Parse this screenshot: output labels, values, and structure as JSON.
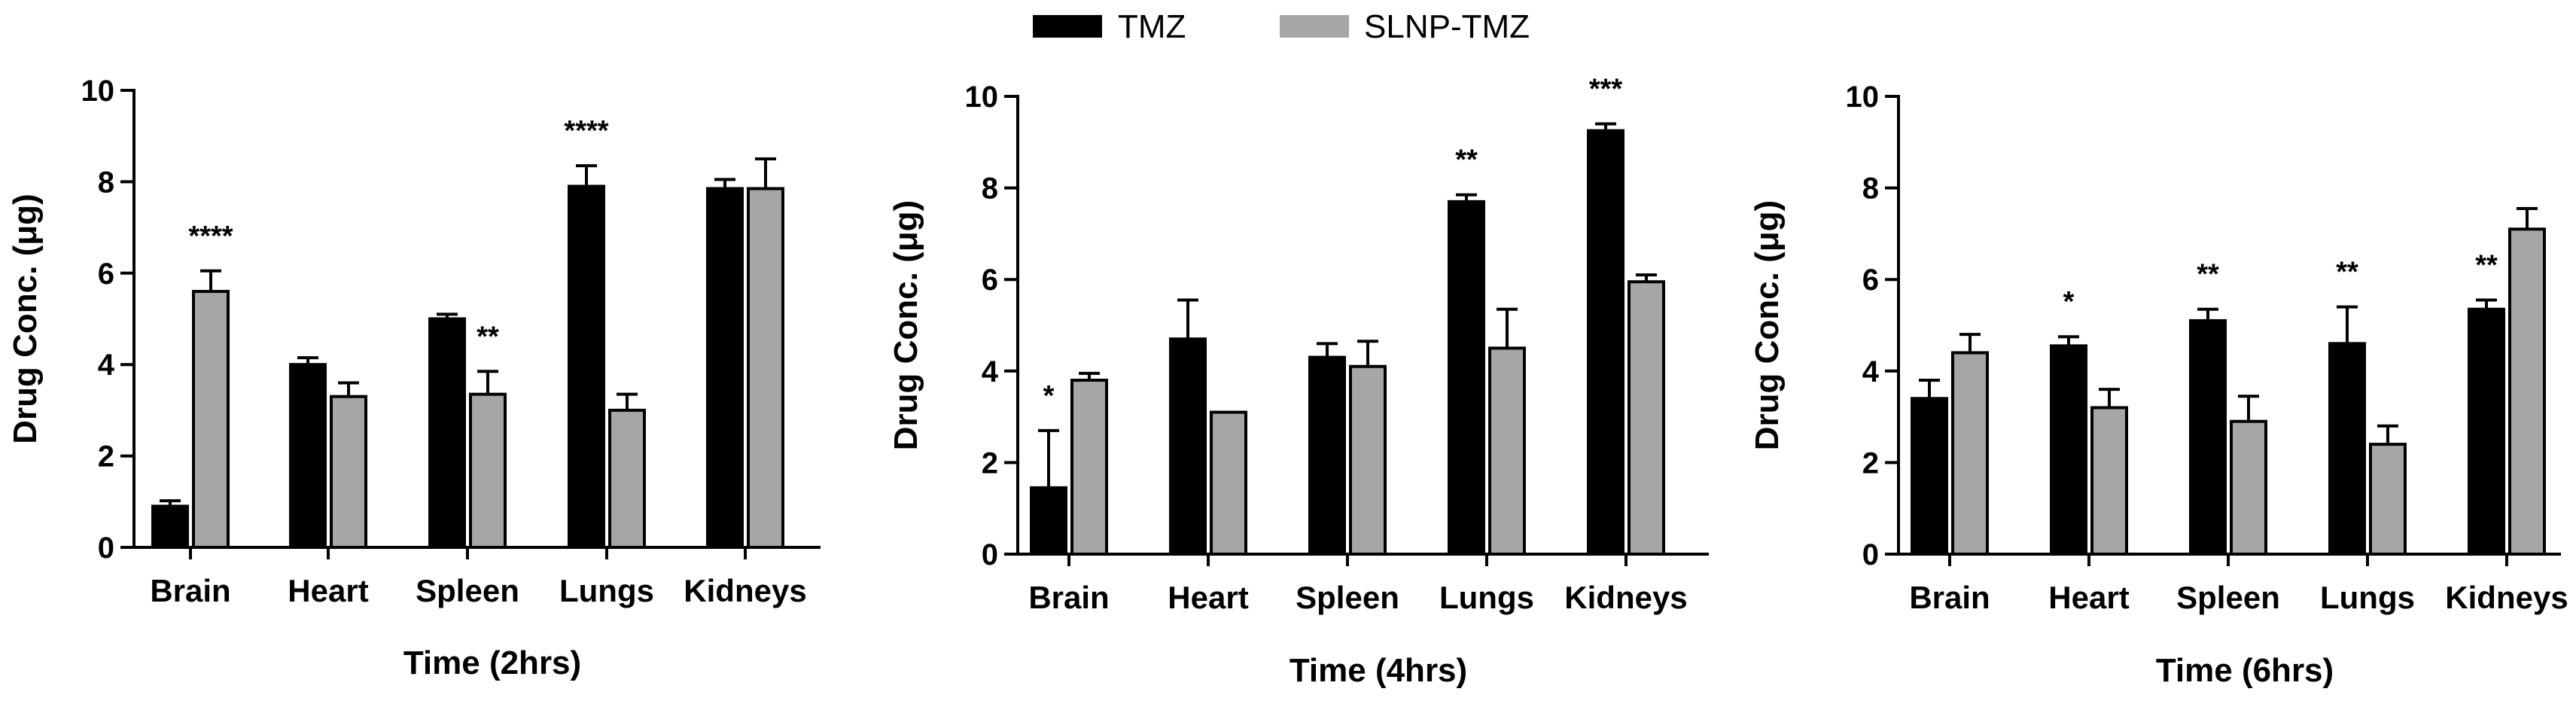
{
  "legend": [
    {
      "name": "TMZ",
      "color": "#000000"
    },
    {
      "name": "SLNP-TMZ",
      "color": "#a6a6a6"
    }
  ],
  "chart_data": [
    {
      "type": "bar",
      "categories": [
        "Brain",
        "Heart",
        "Spleen",
        "Lungs",
        "Kidneys"
      ],
      "series": [
        {
          "name": "TMZ",
          "values": [
            0.9,
            4.0,
            5.0,
            7.9,
            7.85
          ],
          "errors": [
            0.12,
            0.15,
            0.1,
            0.45,
            0.2
          ]
        },
        {
          "name": "SLNP-TMZ",
          "values": [
            5.6,
            3.3,
            3.35,
            3.0,
            7.85
          ],
          "errors": [
            0.45,
            0.3,
            0.5,
            0.35,
            0.65
          ]
        }
      ],
      "significance": [
        "****",
        "",
        "**",
        "****",
        ""
      ],
      "significance_over": [
        "SLNP-TMZ",
        "",
        "SLNP-TMZ",
        "TMZ",
        ""
      ],
      "ylabel": "Drug Conc. (μg)",
      "xlabel": "Time (2hrs)",
      "ylim": [
        0,
        10
      ],
      "yticks": [
        "0",
        "2",
        "4",
        "6",
        "8",
        "10"
      ]
    },
    {
      "type": "bar",
      "categories": [
        "Brain",
        "Heart",
        "Spleen",
        "Lungs",
        "Kidneys"
      ],
      "series": [
        {
          "name": "TMZ",
          "values": [
            1.45,
            4.7,
            4.3,
            7.7,
            9.25
          ],
          "errors": [
            1.25,
            0.85,
            0.3,
            0.15,
            0.15
          ]
        },
        {
          "name": "SLNP-TMZ",
          "values": [
            3.8,
            3.1,
            4.1,
            4.5,
            5.95
          ],
          "errors": [
            0.15,
            0.0,
            0.55,
            0.85,
            0.15
          ]
        }
      ],
      "significance": [
        "*",
        "",
        "",
        "**",
        "***"
      ],
      "significance_over": [
        "TMZ",
        "",
        "",
        "TMZ",
        "TMZ"
      ],
      "ylabel": "Drug Conc. (μg)",
      "xlabel": "Time (4hrs)",
      "ylim": [
        0,
        10
      ],
      "yticks": [
        "0",
        "2",
        "4",
        "6",
        "8",
        "10"
      ]
    },
    {
      "type": "bar",
      "categories": [
        "Brain",
        "Heart",
        "Spleen",
        "Lungs",
        "Kidneys"
      ],
      "series": [
        {
          "name": "TMZ",
          "values": [
            3.4,
            4.55,
            5.1,
            4.6,
            5.35
          ],
          "errors": [
            0.4,
            0.2,
            0.25,
            0.8,
            0.2
          ]
        },
        {
          "name": "SLNP-TMZ",
          "values": [
            4.4,
            3.2,
            2.9,
            2.4,
            7.1
          ],
          "errors": [
            0.4,
            0.4,
            0.55,
            0.4,
            0.45
          ]
        }
      ],
      "significance": [
        "",
        "*",
        "**",
        "**",
        "**"
      ],
      "significance_over": [
        "",
        "TMZ",
        "TMZ",
        "TMZ",
        "TMZ"
      ],
      "ylabel": "Drug Conc. (μg)",
      "xlabel": "Time (6hrs)",
      "ylim": [
        0,
        10
      ],
      "yticks": [
        "0",
        "2",
        "4",
        "6",
        "8",
        "10"
      ]
    }
  ]
}
